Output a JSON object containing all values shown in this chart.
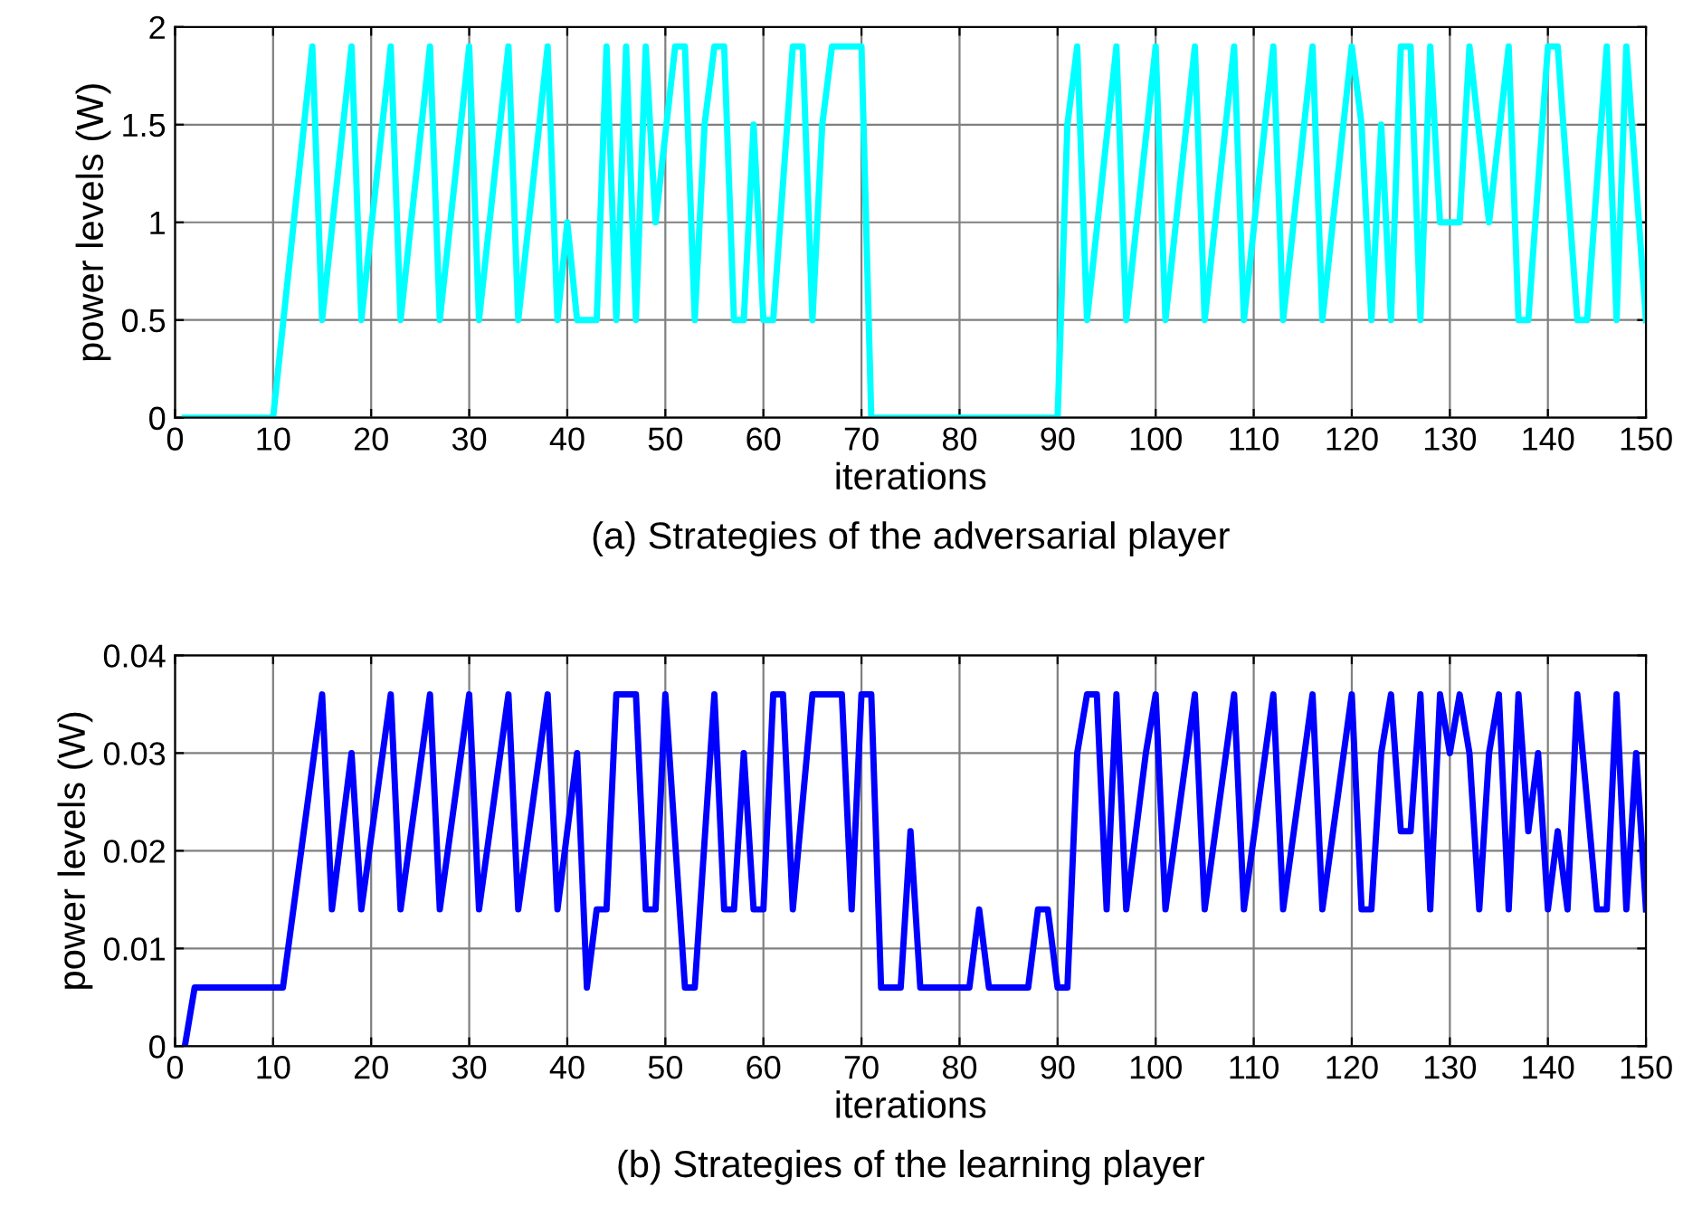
{
  "chart_data": [
    {
      "type": "line",
      "xlabel": "iterations",
      "ylabel": "power levels (W)",
      "annotations": [
        "(a) Strategies of the adversarial player"
      ],
      "xlim": [
        0,
        150
      ],
      "ylim": [
        0,
        2
      ],
      "xticks": [
        0,
        10,
        20,
        30,
        40,
        50,
        60,
        70,
        80,
        90,
        100,
        110,
        120,
        130,
        140,
        150
      ],
      "yticks": [
        0,
        0.5,
        1,
        1.5,
        2
      ],
      "grid": true,
      "series": [
        {
          "color": "#00ffff",
          "x": [
            1,
            10,
            14,
            15,
            18,
            19,
            22,
            23,
            26,
            27,
            30,
            31,
            34,
            35,
            38,
            39,
            40,
            41,
            43,
            44,
            45,
            46,
            47,
            48,
            49,
            51,
            52,
            53,
            54,
            55,
            56,
            57,
            58,
            59,
            60,
            61,
            63,
            64,
            65,
            66,
            67,
            70,
            71,
            90,
            91,
            92,
            93,
            96,
            97,
            100,
            101,
            104,
            105,
            108,
            109,
            112,
            113,
            116,
            117,
            120,
            121,
            122,
            123,
            124,
            125,
            126,
            127,
            128,
            129,
            131,
            132,
            134,
            136,
            137,
            138,
            140,
            141,
            143,
            144,
            146,
            147,
            148,
            150
          ],
          "values": [
            0,
            0,
            1.9,
            0.5,
            1.9,
            0.5,
            1.9,
            0.5,
            1.9,
            0.5,
            1.9,
            0.5,
            1.9,
            0.5,
            1.9,
            0.5,
            1,
            0.5,
            0.5,
            1.9,
            0.5,
            1.9,
            0.5,
            1.9,
            1,
            1.9,
            1.9,
            0.5,
            1.5,
            1.9,
            1.9,
            0.5,
            0.5,
            1.5,
            0.5,
            0.5,
            1.9,
            1.9,
            0.5,
            1.5,
            1.9,
            1.9,
            0,
            0,
            1.5,
            1.9,
            0.5,
            1.9,
            0.5,
            1.9,
            0.5,
            1.9,
            0.5,
            1.9,
            0.5,
            1.9,
            0.5,
            1.9,
            0.5,
            1.9,
            1.5,
            0.5,
            1.5,
            0.5,
            1.9,
            1.9,
            0.5,
            1.9,
            1,
            1,
            1.9,
            1,
            1.9,
            0.5,
            0.5,
            1.9,
            1.9,
            0.5,
            0.5,
            1.9,
            0.5,
            1.9,
            0.5
          ]
        }
      ]
    },
    {
      "type": "line",
      "xlabel": "iterations",
      "ylabel": "power levels (W)",
      "annotations": [
        "(b) Strategies of the learning player"
      ],
      "xlim": [
        0,
        150
      ],
      "ylim": [
        0,
        0.04
      ],
      "xticks": [
        0,
        10,
        20,
        30,
        40,
        50,
        60,
        70,
        80,
        90,
        100,
        110,
        120,
        130,
        140,
        150
      ],
      "yticks": [
        0,
        0.01,
        0.02,
        0.03,
        0.04
      ],
      "grid": true,
      "series": [
        {
          "color": "#0000ff",
          "x": [
            1,
            2,
            11,
            15,
            16,
            18,
            19,
            22,
            23,
            26,
            27,
            30,
            31,
            34,
            35,
            38,
            39,
            41,
            42,
            43,
            44,
            45,
            47,
            48,
            49,
            50,
            52,
            53,
            55,
            56,
            57,
            58,
            59,
            60,
            61,
            62,
            63,
            65,
            68,
            69,
            70,
            71,
            72,
            74,
            75,
            76,
            81,
            82,
            83,
            87,
            88,
            89,
            90,
            91,
            92,
            93,
            94,
            95,
            96,
            97,
            99,
            100,
            101,
            104,
            105,
            108,
            109,
            112,
            113,
            116,
            117,
            120,
            121,
            122,
            123,
            124,
            125,
            126,
            127,
            128,
            129,
            130,
            131,
            132,
            133,
            134,
            135,
            136,
            137,
            138,
            139,
            140,
            141,
            142,
            143,
            145,
            146,
            147,
            148,
            149,
            150
          ],
          "values": [
            0,
            0.006,
            0.006,
            0.036,
            0.014,
            0.03,
            0.014,
            0.036,
            0.014,
            0.036,
            0.014,
            0.036,
            0.014,
            0.036,
            0.014,
            0.036,
            0.014,
            0.03,
            0.006,
            0.014,
            0.014,
            0.036,
            0.036,
            0.014,
            0.014,
            0.036,
            0.006,
            0.006,
            0.036,
            0.014,
            0.014,
            0.03,
            0.014,
            0.014,
            0.036,
            0.036,
            0.014,
            0.036,
            0.036,
            0.014,
            0.036,
            0.036,
            0.006,
            0.006,
            0.022,
            0.006,
            0.006,
            0.014,
            0.006,
            0.006,
            0.014,
            0.014,
            0.006,
            0.006,
            0.03,
            0.036,
            0.036,
            0.014,
            0.036,
            0.014,
            0.03,
            0.036,
            0.014,
            0.036,
            0.014,
            0.036,
            0.014,
            0.036,
            0.014,
            0.036,
            0.014,
            0.036,
            0.014,
            0.014,
            0.03,
            0.036,
            0.022,
            0.022,
            0.036,
            0.014,
            0.036,
            0.03,
            0.036,
            0.03,
            0.014,
            0.03,
            0.036,
            0.014,
            0.036,
            0.022,
            0.03,
            0.014,
            0.022,
            0.014,
            0.036,
            0.014,
            0.014,
            0.036,
            0.014,
            0.03,
            0.014
          ]
        }
      ]
    }
  ]
}
